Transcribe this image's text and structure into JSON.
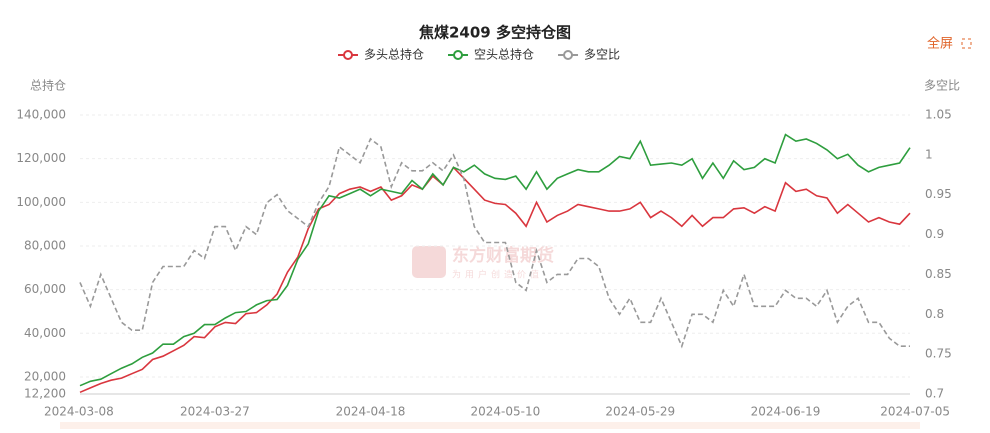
{
  "chart_data": {
    "type": "line",
    "title": "焦煤2409 多空持仓图",
    "fullscreen_label": "全屏",
    "y_label": "总持仓",
    "y2_label": "多空比",
    "watermark": "东方财富期货",
    "watermark_sub": "为用户创造价值",
    "categories": [
      "2024-03-08",
      null,
      null,
      null,
      null,
      null,
      null,
      null,
      null,
      null,
      null,
      null,
      null,
      "2024-03-27",
      null,
      null,
      null,
      null,
      null,
      null,
      null,
      null,
      null,
      null,
      null,
      null,
      null,
      null,
      "2024-04-18",
      null,
      null,
      null,
      null,
      null,
      null,
      null,
      null,
      null,
      null,
      null,
      null,
      "2024-05-10",
      null,
      null,
      null,
      null,
      null,
      null,
      null,
      null,
      null,
      null,
      null,
      null,
      "2024-05-29",
      null,
      null,
      null,
      null,
      null,
      null,
      null,
      null,
      null,
      null,
      null,
      null,
      null,
      "2024-06-19",
      null,
      null,
      null,
      null,
      null,
      null,
      null,
      null,
      null,
      null,
      null,
      "2024-07-05"
    ],
    "ylim": [
      12200,
      140000
    ],
    "yticks": [
      {
        "value": 12200,
        "label": "12,200"
      },
      {
        "value": 20000,
        "label": "20,000"
      },
      {
        "value": 40000,
        "label": "40,000"
      },
      {
        "value": 60000,
        "label": "60,000"
      },
      {
        "value": 80000,
        "label": "80,000"
      },
      {
        "value": 100000,
        "label": "100,000"
      },
      {
        "value": 120000,
        "label": "120,000"
      },
      {
        "value": 140000,
        "label": "140,000"
      }
    ],
    "y2lim": [
      0.7,
      1.05
    ],
    "y2ticks": [
      0.7,
      0.75,
      0.8,
      0.85,
      0.9,
      0.95,
      1,
      1.05
    ],
    "grid": true,
    "series": [
      {
        "name": "多头总持仓",
        "color": "#d9363e",
        "values": [
          13000,
          15000,
          17000,
          18500,
          19500,
          21500,
          23500,
          28000,
          29500,
          32000,
          34500,
          38500,
          38000,
          43000,
          45000,
          44500,
          49000,
          49500,
          53000,
          58000,
          68000,
          75000,
          88000,
          97000,
          99000,
          104000,
          106000,
          107000,
          105000,
          107000,
          101000,
          103000,
          108000,
          106000,
          112000,
          108000,
          116000,
          111000,
          106000,
          101000,
          99500,
          99000,
          95000,
          89000,
          100000,
          91000,
          94000,
          96000,
          99000,
          98000,
          97000,
          96000,
          96000,
          97000,
          100000,
          93000,
          96000,
          93000,
          89000,
          94000,
          89000,
          93000,
          93000,
          97000,
          97500,
          95000,
          98000,
          96000,
          109000,
          105000,
          106000,
          103000,
          102000,
          95000,
          99000,
          95000,
          91000,
          93000,
          91000,
          90000,
          95000
        ]
      },
      {
        "name": "空头总持仓",
        "color": "#2e9e3e",
        "values": [
          16000,
          18000,
          19000,
          21500,
          24000,
          26000,
          29000,
          31000,
          35000,
          35000,
          38500,
          40000,
          44000,
          44000,
          47000,
          49500,
          50000,
          53000,
          55000,
          55500,
          62000,
          74000,
          81000,
          96000,
          103000,
          102000,
          104000,
          106000,
          103000,
          106000,
          105000,
          104000,
          110000,
          106000,
          113000,
          108000,
          116000,
          114000,
          117000,
          113000,
          111000,
          110500,
          112000,
          106000,
          114000,
          106000,
          111000,
          113000,
          115000,
          114000,
          114000,
          117000,
          121000,
          120000,
          128000,
          117000,
          117500,
          118000,
          117000,
          120000,
          111000,
          118000,
          111000,
          119000,
          115000,
          116000,
          120000,
          118000,
          131000,
          128000,
          129000,
          127000,
          124000,
          120000,
          122000,
          117000,
          114000,
          116000,
          117000,
          118000,
          125000
        ]
      },
      {
        "name": "多空比",
        "color": "#999999",
        "dashed": true,
        "axis": "y2",
        "values": [
          0.84,
          0.81,
          0.85,
          0.82,
          0.79,
          0.78,
          0.78,
          0.84,
          0.86,
          0.86,
          0.86,
          0.88,
          0.87,
          0.91,
          0.91,
          0.88,
          0.91,
          0.9,
          0.94,
          0.95,
          0.93,
          0.92,
          0.91,
          0.94,
          0.96,
          1.01,
          1.0,
          0.99,
          1.02,
          1.01,
          0.96,
          0.99,
          0.98,
          0.98,
          0.99,
          0.98,
          1.0,
          0.97,
          0.91,
          0.89,
          0.89,
          0.89,
          0.84,
          0.83,
          0.88,
          0.84,
          0.85,
          0.85,
          0.87,
          0.87,
          0.86,
          0.82,
          0.8,
          0.82,
          0.79,
          0.79,
          0.82,
          0.79,
          0.76,
          0.8,
          0.8,
          0.79,
          0.83,
          0.81,
          0.85,
          0.81,
          0.81,
          0.81,
          0.83,
          0.82,
          0.82,
          0.81,
          0.83,
          0.79,
          0.81,
          0.82,
          0.79,
          0.79,
          0.77,
          0.76,
          0.76
        ]
      }
    ]
  }
}
